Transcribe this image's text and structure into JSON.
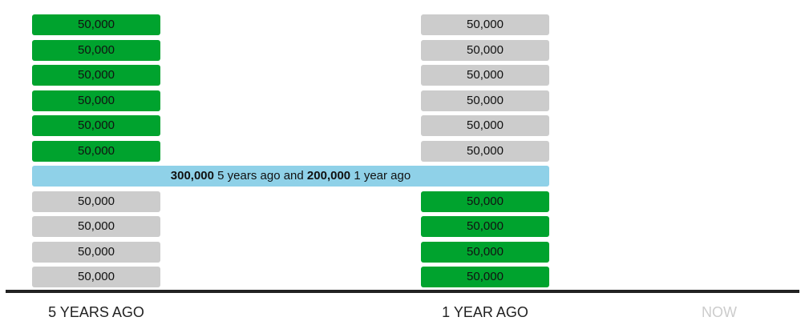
{
  "columns": [
    {
      "label": "5 YEARS AGO",
      "boxes": [
        {
          "text": "50,000",
          "highlighted": true
        },
        {
          "text": "50,000",
          "highlighted": true
        },
        {
          "text": "50,000",
          "highlighted": true
        },
        {
          "text": "50,000",
          "highlighted": true
        },
        {
          "text": "50,000",
          "highlighted": true
        },
        {
          "text": "50,000",
          "highlighted": true
        },
        {
          "text": "50,000",
          "highlighted": false
        },
        {
          "text": "50,000",
          "highlighted": false
        },
        {
          "text": "50,000",
          "highlighted": false
        },
        {
          "text": "50,000",
          "highlighted": false
        }
      ]
    },
    {
      "label": "1 YEAR AGO",
      "boxes": [
        {
          "text": "50,000",
          "highlighted": false
        },
        {
          "text": "50,000",
          "highlighted": false
        },
        {
          "text": "50,000",
          "highlighted": false
        },
        {
          "text": "50,000",
          "highlighted": false
        },
        {
          "text": "50,000",
          "highlighted": false
        },
        {
          "text": "50,000",
          "highlighted": false
        },
        {
          "text": "50,000",
          "highlighted": true
        },
        {
          "text": "50,000",
          "highlighted": true
        },
        {
          "text": "50,000",
          "highlighted": true
        },
        {
          "text": "50,000",
          "highlighted": true
        }
      ]
    },
    {
      "label": "NOW",
      "muted": true,
      "boxes": []
    }
  ],
  "banner": {
    "parts": [
      {
        "text": "300,000",
        "bold": true
      },
      {
        "text": " 5 years ago and ",
        "bold": false
      },
      {
        "text": "200,000",
        "bold": true
      },
      {
        "text": " 1 year ago",
        "bold": false
      }
    ]
  }
}
